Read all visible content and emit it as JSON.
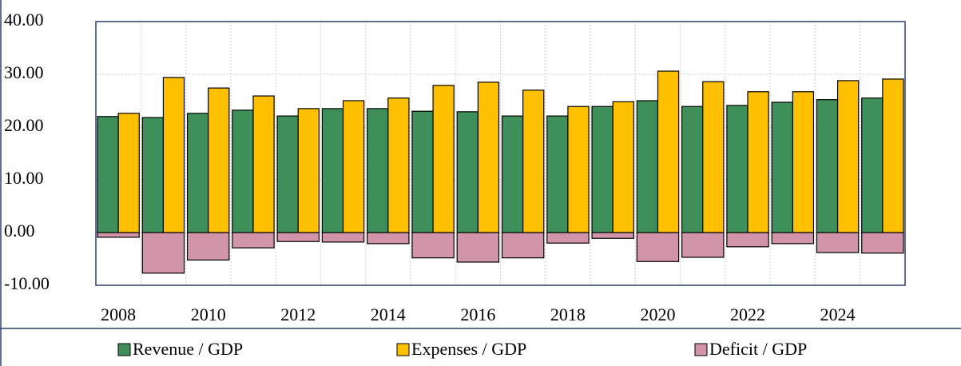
{
  "chart_data": {
    "type": "bar",
    "categories": [
      "2008",
      null,
      "2010",
      null,
      "2012",
      null,
      "2014",
      null,
      "2016",
      null,
      "2018",
      null,
      "2020",
      null,
      "2022",
      null,
      "2024",
      null
    ],
    "series": [
      {
        "name": "Revenue / GDP",
        "color": "#3f8f5a",
        "values": [
          22.0,
          21.8,
          22.6,
          23.2,
          22.1,
          23.5,
          23.5,
          23.0,
          22.9,
          22.1,
          22.1,
          23.9,
          25.0,
          23.9,
          24.1,
          24.7,
          25.2,
          25.5
        ]
      },
      {
        "name": "Expenses / GDP",
        "color": "#ffc000",
        "values": [
          22.6,
          29.4,
          27.4,
          25.9,
          23.5,
          25.0,
          25.5,
          27.9,
          28.5,
          27.0,
          23.9,
          24.8,
          30.6,
          28.6,
          26.7,
          26.7,
          28.8,
          29.1
        ]
      },
      {
        "name": "Deficit / GDP",
        "color": "#d294a8",
        "values": [
          -0.9,
          -7.7,
          -5.2,
          -2.9,
          -1.7,
          -1.8,
          -2.1,
          -4.8,
          -5.6,
          -4.8,
          -2.0,
          -1.1,
          -5.5,
          -4.7,
          -2.7,
          -2.1,
          -3.8,
          -3.9
        ]
      }
    ],
    "ylim": [
      -10,
      40
    ],
    "yticks": [
      {
        "value": -10,
        "label": "-10.00"
      },
      {
        "value": 0,
        "label": "0.00"
      },
      {
        "value": 10,
        "label": "10.00"
      },
      {
        "value": 20,
        "label": "20.00"
      },
      {
        "value": 30,
        "label": "30.00"
      },
      {
        "value": 40,
        "label": "40.00"
      }
    ],
    "grid": true
  }
}
